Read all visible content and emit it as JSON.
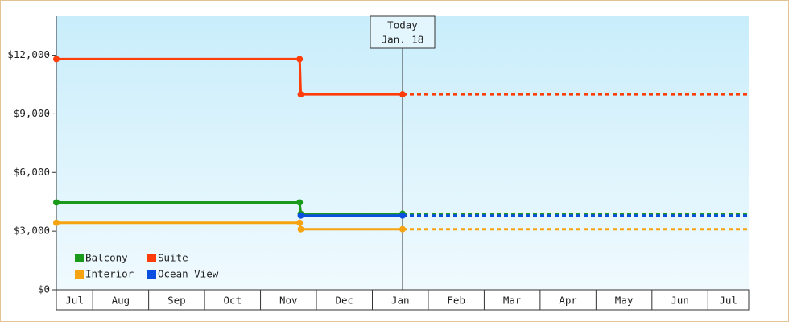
{
  "chart_data": {
    "type": "step-line",
    "x": [
      0.35,
      4.7,
      4.72,
      6.54,
      12.73
    ],
    "xlim": [
      0.35,
      12.73
    ],
    "xticks": [
      {
        "value": 0,
        "label": "Jul"
      },
      {
        "value": 1,
        "label": "Aug"
      },
      {
        "value": 2,
        "label": "Sep"
      },
      {
        "value": 3,
        "label": "Oct"
      },
      {
        "value": 4,
        "label": "Nov"
      },
      {
        "value": 5,
        "label": "Dec"
      },
      {
        "value": 6,
        "label": "Jan"
      },
      {
        "value": 7,
        "label": "Feb"
      },
      {
        "value": 8,
        "label": "Mar"
      },
      {
        "value": 9,
        "label": "Apr"
      },
      {
        "value": 10,
        "label": "May"
      },
      {
        "value": 11,
        "label": "Jun"
      },
      {
        "value": 12,
        "label": "Jul"
      }
    ],
    "ylim": [
      0,
      14000
    ],
    "yticks": [
      {
        "value": 0,
        "label": "$0"
      },
      {
        "value": 3000,
        "label": "$3,000"
      },
      {
        "value": 6000,
        "label": "$6,000"
      },
      {
        "value": 9000,
        "label": "$9,000"
      },
      {
        "value": 12000,
        "label": "$12,000"
      }
    ],
    "today": {
      "x": 6.54,
      "label": "Today",
      "date": "Jan. 18"
    },
    "series": [
      {
        "name": "Balcony",
        "color": "#1a9a1a",
        "values": [
          4470,
          4470,
          3890,
          3890,
          3890
        ]
      },
      {
        "name": "Suite",
        "color": "#ff3d0a",
        "values": [
          11800,
          11800,
          10000,
          10000,
          10000
        ]
      },
      {
        "name": "Interior",
        "color": "#f5a310",
        "values": [
          3430,
          3430,
          3100,
          3100,
          3100
        ]
      },
      {
        "name": "Ocean View",
        "color": "#0a4fe0",
        "values": [
          null,
          null,
          3800,
          3800,
          3800
        ]
      }
    ]
  }
}
